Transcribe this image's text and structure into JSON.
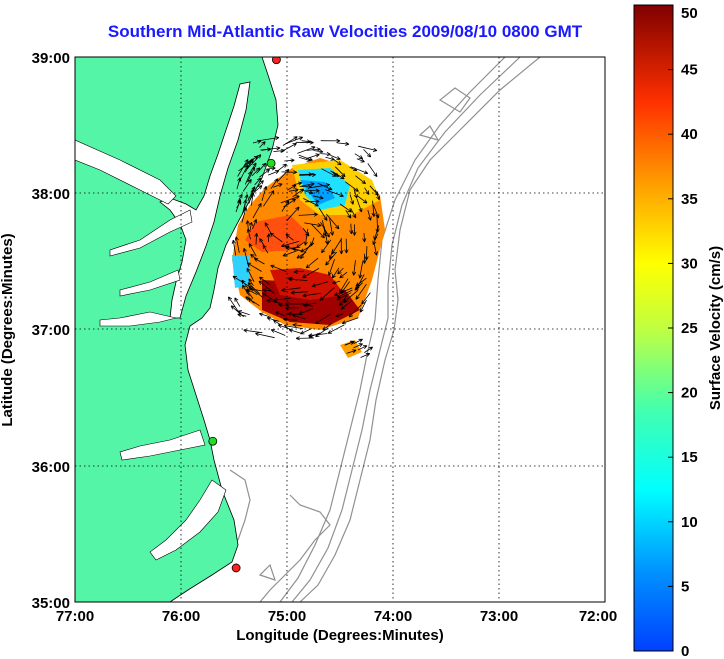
{
  "title": "Southern Mid-Atlantic Raw Velocities 2009/08/10 0800 GMT",
  "xlabel": "Longitude (Degrees:Minutes)",
  "ylabel": "Latitude (Degrees:Minutes)",
  "x_ticks": [
    "77:00",
    "76:00",
    "75:00",
    "74:00",
    "73:00",
    "72:00"
  ],
  "y_ticks": [
    "39:00",
    "38:00",
    "37:00",
    "36:00",
    "35:00"
  ],
  "colorbar": {
    "label": "Surface Velocity (cm/s)",
    "ticks": [
      "0",
      "5",
      "10",
      "15",
      "20",
      "25",
      "30",
      "35",
      "40",
      "45",
      "50"
    ],
    "range": [
      0,
      50
    ],
    "colormap": "jet"
  },
  "map": {
    "lon_range": [
      -77,
      -72
    ],
    "lat_range": [
      35,
      39
    ],
    "land_color": "#55f5a8",
    "grid": "dotted"
  },
  "stations": [
    {
      "lon": -75.1,
      "lat": 38.98,
      "color": "#ff2020"
    },
    {
      "lon": -75.15,
      "lat": 38.22,
      "color": "#22dd22"
    },
    {
      "lon": -75.7,
      "lat": 36.18,
      "color": "#22dd22"
    },
    {
      "lon": -75.48,
      "lat": 35.25,
      "color": "#ff2020"
    }
  ]
}
